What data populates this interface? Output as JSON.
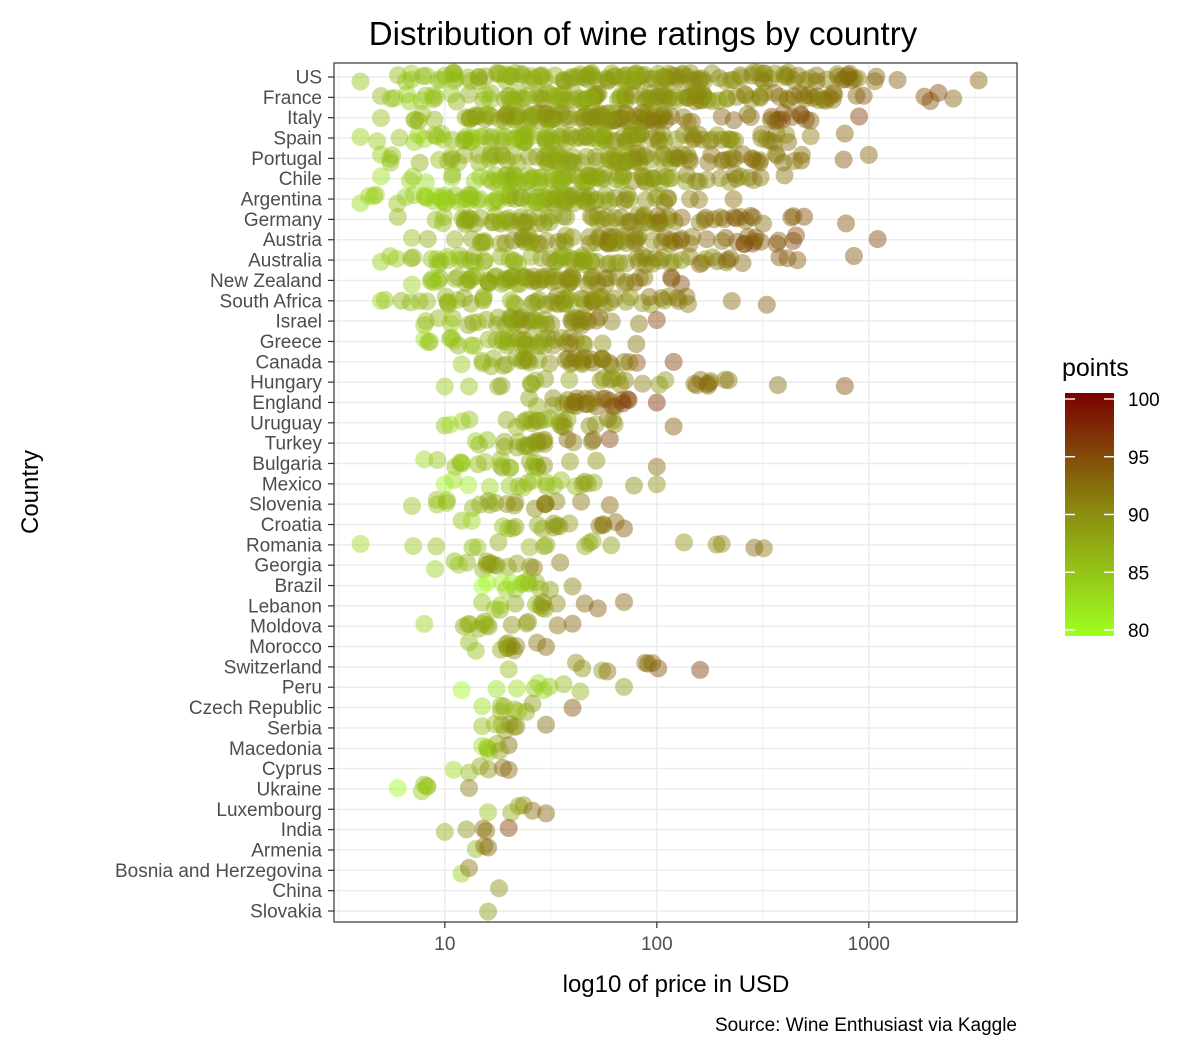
{
  "chart_data": {
    "type": "scatter",
    "title": "Distribution of wine ratings by country",
    "xlabel": "log10 of price in USD",
    "ylabel": "Country",
    "caption": "Source: Wine Enthusiast via Kaggle",
    "x_scale": "log10",
    "xlim": [
      3,
      5000
    ],
    "x_ticks": [
      10,
      100,
      1000
    ],
    "x_tick_labels": [
      "10",
      "100",
      "1000"
    ],
    "grid": true,
    "legend": {
      "title": "points",
      "position": "right",
      "ticks": [
        80,
        85,
        90,
        95,
        100
      ],
      "tick_labels": [
        "80",
        "85",
        "90",
        "95",
        "100"
      ],
      "color_low": "#a0ff20",
      "color_mid": "#8b8f10",
      "color_high": "#7a0000",
      "range": [
        80,
        100
      ]
    },
    "countries": [
      {
        "name": "US",
        "price_min": 4,
        "price_max": 3300,
        "points_mean": 88
      },
      {
        "name": "France",
        "price_min": 5,
        "price_max": 2500,
        "points_mean": 88
      },
      {
        "name": "Italy",
        "price_min": 5,
        "price_max": 900,
        "points_mean": 89
      },
      {
        "name": "Spain",
        "price_min": 4,
        "price_max": 770,
        "points_mean": 87
      },
      {
        "name": "Portugal",
        "price_min": 5,
        "price_max": 1000,
        "points_mean": 88
      },
      {
        "name": "Chile",
        "price_min": 5,
        "price_max": 400,
        "points_mean": 86
      },
      {
        "name": "Argentina",
        "price_min": 4,
        "price_max": 230,
        "points_mean": 86
      },
      {
        "name": "Germany",
        "price_min": 6,
        "price_max": 780,
        "points_mean": 89
      },
      {
        "name": "Austria",
        "price_min": 7,
        "price_max": 1100,
        "points_mean": 90
      },
      {
        "name": "Australia",
        "price_min": 5,
        "price_max": 850,
        "points_mean": 88
      },
      {
        "name": "New Zealand",
        "price_min": 7,
        "price_max": 130,
        "points_mean": 88
      },
      {
        "name": "South Africa",
        "price_min": 5,
        "price_max": 330,
        "points_mean": 88
      },
      {
        "name": "Israel",
        "price_min": 8,
        "price_max": 100,
        "points_mean": 88
      },
      {
        "name": "Greece",
        "price_min": 8,
        "price_max": 80,
        "points_mean": 87
      },
      {
        "name": "Canada",
        "price_min": 12,
        "price_max": 120,
        "points_mean": 89
      },
      {
        "name": "Hungary",
        "price_min": 10,
        "price_max": 770,
        "points_mean": 89
      },
      {
        "name": "England",
        "price_min": 25,
        "price_max": 100,
        "points_mean": 91
      },
      {
        "name": "Uruguay",
        "price_min": 10,
        "price_max": 120,
        "points_mean": 87
      },
      {
        "name": "Turkey",
        "price_min": 14,
        "price_max": 60,
        "points_mean": 88
      },
      {
        "name": "Bulgaria",
        "price_min": 8,
        "price_max": 100,
        "points_mean": 87
      },
      {
        "name": "Mexico",
        "price_min": 10,
        "price_max": 100,
        "points_mean": 85
      },
      {
        "name": "Slovenia",
        "price_min": 7,
        "price_max": 60,
        "points_mean": 88
      },
      {
        "name": "Croatia",
        "price_min": 12,
        "price_max": 70,
        "points_mean": 87
      },
      {
        "name": "Romania",
        "price_min": 4,
        "price_max": 320,
        "points_mean": 86
      },
      {
        "name": "Georgia",
        "price_min": 9,
        "price_max": 35,
        "points_mean": 87
      },
      {
        "name": "Brazil",
        "price_min": 15,
        "price_max": 40,
        "points_mean": 84
      },
      {
        "name": "Lebanon",
        "price_min": 15,
        "price_max": 70,
        "points_mean": 88
      },
      {
        "name": "Moldova",
        "price_min": 8,
        "price_max": 40,
        "points_mean": 87
      },
      {
        "name": "Morocco",
        "price_min": 13,
        "price_max": 30,
        "points_mean": 88
      },
      {
        "name": "Switzerland",
        "price_min": 20,
        "price_max": 160,
        "points_mean": 89
      },
      {
        "name": "Peru",
        "price_min": 12,
        "price_max": 70,
        "points_mean": 83
      },
      {
        "name": "Czech Republic",
        "price_min": 15,
        "price_max": 40,
        "points_mean": 87
      },
      {
        "name": "Serbia",
        "price_min": 15,
        "price_max": 30,
        "points_mean": 88
      },
      {
        "name": "Macedonia",
        "price_min": 15,
        "price_max": 20,
        "points_mean": 86
      },
      {
        "name": "Cyprus",
        "price_min": 11,
        "price_max": 20,
        "points_mean": 87
      },
      {
        "name": "Ukraine",
        "price_min": 6,
        "price_max": 13,
        "points_mean": 84
      },
      {
        "name": "Luxembourg",
        "price_min": 16,
        "price_max": 30,
        "points_mean": 88
      },
      {
        "name": "India",
        "price_min": 10,
        "price_max": 20,
        "points_mean": 90
      },
      {
        "name": "Armenia",
        "price_min": 14,
        "price_max": 16,
        "points_mean": 88
      },
      {
        "name": "Bosnia and Herzegovina",
        "price_min": 12,
        "price_max": 13,
        "points_mean": 87
      },
      {
        "name": "China",
        "price_min": 18,
        "price_max": 18,
        "points_mean": 89
      },
      {
        "name": "Slovakia",
        "price_min": 16,
        "price_max": 16,
        "points_mean": 87
      }
    ]
  }
}
